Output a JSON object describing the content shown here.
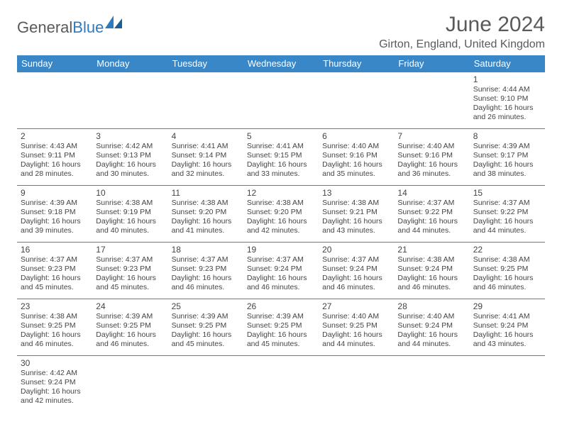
{
  "brand": {
    "word1": "General",
    "word2": "Blue",
    "text_color": "#5a5a5a",
    "accent_color": "#2f7abf"
  },
  "title": "June 2024",
  "location": "Girton, England, United Kingdom",
  "header_bg": "#3a87c8",
  "header_fg": "#ffffff",
  "border_color": "#3a87c8",
  "text_color": "#444444",
  "background_color": "#ffffff",
  "day_headers": [
    "Sunday",
    "Monday",
    "Tuesday",
    "Wednesday",
    "Thursday",
    "Friday",
    "Saturday"
  ],
  "weeks": [
    [
      null,
      null,
      null,
      null,
      null,
      null,
      {
        "n": "1",
        "sr": "Sunrise: 4:44 AM",
        "ss": "Sunset: 9:10 PM",
        "d1": "Daylight: 16 hours",
        "d2": "and 26 minutes."
      }
    ],
    [
      {
        "n": "2",
        "sr": "Sunrise: 4:43 AM",
        "ss": "Sunset: 9:11 PM",
        "d1": "Daylight: 16 hours",
        "d2": "and 28 minutes."
      },
      {
        "n": "3",
        "sr": "Sunrise: 4:42 AM",
        "ss": "Sunset: 9:13 PM",
        "d1": "Daylight: 16 hours",
        "d2": "and 30 minutes."
      },
      {
        "n": "4",
        "sr": "Sunrise: 4:41 AM",
        "ss": "Sunset: 9:14 PM",
        "d1": "Daylight: 16 hours",
        "d2": "and 32 minutes."
      },
      {
        "n": "5",
        "sr": "Sunrise: 4:41 AM",
        "ss": "Sunset: 9:15 PM",
        "d1": "Daylight: 16 hours",
        "d2": "and 33 minutes."
      },
      {
        "n": "6",
        "sr": "Sunrise: 4:40 AM",
        "ss": "Sunset: 9:16 PM",
        "d1": "Daylight: 16 hours",
        "d2": "and 35 minutes."
      },
      {
        "n": "7",
        "sr": "Sunrise: 4:40 AM",
        "ss": "Sunset: 9:16 PM",
        "d1": "Daylight: 16 hours",
        "d2": "and 36 minutes."
      },
      {
        "n": "8",
        "sr": "Sunrise: 4:39 AM",
        "ss": "Sunset: 9:17 PM",
        "d1": "Daylight: 16 hours",
        "d2": "and 38 minutes."
      }
    ],
    [
      {
        "n": "9",
        "sr": "Sunrise: 4:39 AM",
        "ss": "Sunset: 9:18 PM",
        "d1": "Daylight: 16 hours",
        "d2": "and 39 minutes."
      },
      {
        "n": "10",
        "sr": "Sunrise: 4:38 AM",
        "ss": "Sunset: 9:19 PM",
        "d1": "Daylight: 16 hours",
        "d2": "and 40 minutes."
      },
      {
        "n": "11",
        "sr": "Sunrise: 4:38 AM",
        "ss": "Sunset: 9:20 PM",
        "d1": "Daylight: 16 hours",
        "d2": "and 41 minutes."
      },
      {
        "n": "12",
        "sr": "Sunrise: 4:38 AM",
        "ss": "Sunset: 9:20 PM",
        "d1": "Daylight: 16 hours",
        "d2": "and 42 minutes."
      },
      {
        "n": "13",
        "sr": "Sunrise: 4:38 AM",
        "ss": "Sunset: 9:21 PM",
        "d1": "Daylight: 16 hours",
        "d2": "and 43 minutes."
      },
      {
        "n": "14",
        "sr": "Sunrise: 4:37 AM",
        "ss": "Sunset: 9:22 PM",
        "d1": "Daylight: 16 hours",
        "d2": "and 44 minutes."
      },
      {
        "n": "15",
        "sr": "Sunrise: 4:37 AM",
        "ss": "Sunset: 9:22 PM",
        "d1": "Daylight: 16 hours",
        "d2": "and 44 minutes."
      }
    ],
    [
      {
        "n": "16",
        "sr": "Sunrise: 4:37 AM",
        "ss": "Sunset: 9:23 PM",
        "d1": "Daylight: 16 hours",
        "d2": "and 45 minutes."
      },
      {
        "n": "17",
        "sr": "Sunrise: 4:37 AM",
        "ss": "Sunset: 9:23 PM",
        "d1": "Daylight: 16 hours",
        "d2": "and 45 minutes."
      },
      {
        "n": "18",
        "sr": "Sunrise: 4:37 AM",
        "ss": "Sunset: 9:23 PM",
        "d1": "Daylight: 16 hours",
        "d2": "and 46 minutes."
      },
      {
        "n": "19",
        "sr": "Sunrise: 4:37 AM",
        "ss": "Sunset: 9:24 PM",
        "d1": "Daylight: 16 hours",
        "d2": "and 46 minutes."
      },
      {
        "n": "20",
        "sr": "Sunrise: 4:37 AM",
        "ss": "Sunset: 9:24 PM",
        "d1": "Daylight: 16 hours",
        "d2": "and 46 minutes."
      },
      {
        "n": "21",
        "sr": "Sunrise: 4:38 AM",
        "ss": "Sunset: 9:24 PM",
        "d1": "Daylight: 16 hours",
        "d2": "and 46 minutes."
      },
      {
        "n": "22",
        "sr": "Sunrise: 4:38 AM",
        "ss": "Sunset: 9:25 PM",
        "d1": "Daylight: 16 hours",
        "d2": "and 46 minutes."
      }
    ],
    [
      {
        "n": "23",
        "sr": "Sunrise: 4:38 AM",
        "ss": "Sunset: 9:25 PM",
        "d1": "Daylight: 16 hours",
        "d2": "and 46 minutes."
      },
      {
        "n": "24",
        "sr": "Sunrise: 4:39 AM",
        "ss": "Sunset: 9:25 PM",
        "d1": "Daylight: 16 hours",
        "d2": "and 46 minutes."
      },
      {
        "n": "25",
        "sr": "Sunrise: 4:39 AM",
        "ss": "Sunset: 9:25 PM",
        "d1": "Daylight: 16 hours",
        "d2": "and 45 minutes."
      },
      {
        "n": "26",
        "sr": "Sunrise: 4:39 AM",
        "ss": "Sunset: 9:25 PM",
        "d1": "Daylight: 16 hours",
        "d2": "and 45 minutes."
      },
      {
        "n": "27",
        "sr": "Sunrise: 4:40 AM",
        "ss": "Sunset: 9:25 PM",
        "d1": "Daylight: 16 hours",
        "d2": "and 44 minutes."
      },
      {
        "n": "28",
        "sr": "Sunrise: 4:40 AM",
        "ss": "Sunset: 9:24 PM",
        "d1": "Daylight: 16 hours",
        "d2": "and 44 minutes."
      },
      {
        "n": "29",
        "sr": "Sunrise: 4:41 AM",
        "ss": "Sunset: 9:24 PM",
        "d1": "Daylight: 16 hours",
        "d2": "and 43 minutes."
      }
    ],
    [
      {
        "n": "30",
        "sr": "Sunrise: 4:42 AM",
        "ss": "Sunset: 9:24 PM",
        "d1": "Daylight: 16 hours",
        "d2": "and 42 minutes."
      },
      null,
      null,
      null,
      null,
      null,
      null
    ]
  ]
}
